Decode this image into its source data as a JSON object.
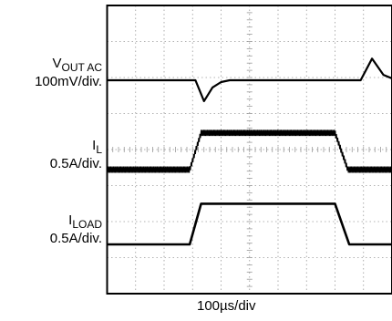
{
  "chart_data": {
    "type": "line",
    "grid": true,
    "xlabel": "100µs/div",
    "x_divisions": 10,
    "y_divisions": 8,
    "traces": [
      {
        "name_main": "V",
        "name_sub": "OUT AC",
        "scale": "100mV/div.",
        "x": [
          0,
          3.1,
          3.4,
          3.7,
          4.0,
          4.3,
          8.0,
          8.9,
          9.3,
          9.7,
          10
        ],
        "y_div": [
          0,
          0,
          -0.58,
          -0.2,
          -0.05,
          0,
          0,
          0,
          0.6,
          0.15,
          0.05
        ]
      },
      {
        "name_main": "I",
        "name_sub": "L",
        "scale": "0.5A/div.",
        "x": [
          0,
          2.9,
          3.3,
          10
        ],
        "low_div": 0,
        "high_div": 1.02,
        "fall_x": [
          8.0,
          8.45
        ],
        "ripple_div": 0.17
      },
      {
        "name_main": "I",
        "name_sub": "LOAD",
        "scale": "0.5A/div.",
        "x": [
          0,
          2.9,
          3.3,
          8.0,
          8.5,
          10
        ],
        "y_div": [
          0,
          0,
          1.13,
          1.13,
          0,
          0
        ]
      }
    ]
  }
}
